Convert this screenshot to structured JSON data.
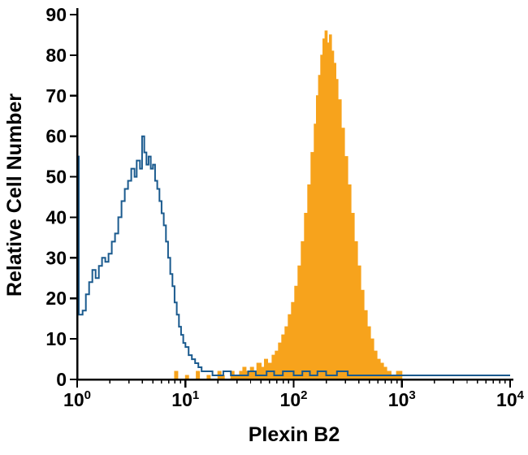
{
  "figure": {
    "background": "#ffffff"
  },
  "chart_data": {
    "type": "area",
    "subtype": "flow-cytometry-histogram-overlay",
    "title": "",
    "xlabel": "Plexin B2",
    "ylabel": "Relative Cell Number",
    "x_scale": "log10",
    "x_range_log10": [
      0,
      4
    ],
    "x_tick_base": "10",
    "x_tick_exponents": [
      0,
      1,
      2,
      3,
      4
    ],
    "ylim": [
      0,
      90
    ],
    "y_ticks": [
      0,
      10,
      20,
      30,
      40,
      50,
      60,
      70,
      80,
      90
    ],
    "grid": false,
    "legend": "none",
    "axis_color": "#000000",
    "series": [
      {
        "id": "filled-orange-histogram",
        "style": "filled",
        "color": "#f7a31c",
        "points": [
          [
            0.85,
            0
          ],
          [
            0.9,
            2
          ],
          [
            0.93,
            0
          ],
          [
            1.0,
            1
          ],
          [
            1.03,
            0
          ],
          [
            1.1,
            2
          ],
          [
            1.13,
            0
          ],
          [
            1.2,
            1
          ],
          [
            1.23,
            0
          ],
          [
            1.3,
            2
          ],
          [
            1.33,
            1
          ],
          [
            1.36,
            0
          ],
          [
            1.42,
            2
          ],
          [
            1.45,
            1
          ],
          [
            1.5,
            2
          ],
          [
            1.53,
            3
          ],
          [
            1.56,
            2
          ],
          [
            1.6,
            3
          ],
          [
            1.63,
            2
          ],
          [
            1.66,
            4
          ],
          [
            1.7,
            3
          ],
          [
            1.73,
            5
          ],
          [
            1.76,
            4
          ],
          [
            1.8,
            6
          ],
          [
            1.83,
            7
          ],
          [
            1.86,
            9
          ],
          [
            1.89,
            11
          ],
          [
            1.92,
            13
          ],
          [
            1.95,
            16
          ],
          [
            1.98,
            19
          ],
          [
            2.01,
            23
          ],
          [
            2.04,
            28
          ],
          [
            2.07,
            34
          ],
          [
            2.1,
            41
          ],
          [
            2.13,
            48
          ],
          [
            2.16,
            56
          ],
          [
            2.19,
            63
          ],
          [
            2.21,
            70
          ],
          [
            2.23,
            75
          ],
          [
            2.25,
            80
          ],
          [
            2.27,
            84
          ],
          [
            2.29,
            86
          ],
          [
            2.31,
            83
          ],
          [
            2.33,
            85
          ],
          [
            2.35,
            81
          ],
          [
            2.37,
            78
          ],
          [
            2.39,
            74
          ],
          [
            2.41,
            69
          ],
          [
            2.44,
            62
          ],
          [
            2.47,
            55
          ],
          [
            2.5,
            48
          ],
          [
            2.53,
            41
          ],
          [
            2.56,
            34
          ],
          [
            2.59,
            28
          ],
          [
            2.62,
            22
          ],
          [
            2.65,
            17
          ],
          [
            2.68,
            13
          ],
          [
            2.71,
            10
          ],
          [
            2.74,
            7
          ],
          [
            2.77,
            5
          ],
          [
            2.8,
            4
          ],
          [
            2.83,
            3
          ],
          [
            2.86,
            2
          ],
          [
            2.9,
            1
          ],
          [
            2.95,
            2
          ],
          [
            3.0,
            0
          ]
        ]
      },
      {
        "id": "open-blue-histogram",
        "style": "open",
        "color": "#1a5a8e",
        "points": [
          [
            0.0,
            55
          ],
          [
            0.015,
            16
          ],
          [
            0.05,
            17
          ],
          [
            0.08,
            21
          ],
          [
            0.11,
            24
          ],
          [
            0.14,
            27
          ],
          [
            0.17,
            25
          ],
          [
            0.2,
            28
          ],
          [
            0.23,
            30
          ],
          [
            0.26,
            29
          ],
          [
            0.29,
            31
          ],
          [
            0.32,
            34
          ],
          [
            0.35,
            36
          ],
          [
            0.38,
            40
          ],
          [
            0.41,
            44
          ],
          [
            0.44,
            47
          ],
          [
            0.47,
            49
          ],
          [
            0.5,
            52
          ],
          [
            0.53,
            50
          ],
          [
            0.55,
            54
          ],
          [
            0.58,
            52
          ],
          [
            0.6,
            60
          ],
          [
            0.62,
            56
          ],
          [
            0.64,
            53
          ],
          [
            0.66,
            55
          ],
          [
            0.68,
            52
          ],
          [
            0.7,
            53
          ],
          [
            0.72,
            49
          ],
          [
            0.74,
            47
          ],
          [
            0.76,
            44
          ],
          [
            0.78,
            41
          ],
          [
            0.8,
            38
          ],
          [
            0.82,
            34
          ],
          [
            0.84,
            30
          ],
          [
            0.86,
            26
          ],
          [
            0.88,
            23
          ],
          [
            0.9,
            19
          ],
          [
            0.92,
            16
          ],
          [
            0.94,
            13
          ],
          [
            0.96,
            11
          ],
          [
            0.98,
            9
          ],
          [
            1.0,
            8
          ],
          [
            1.03,
            6
          ],
          [
            1.06,
            5
          ],
          [
            1.09,
            4
          ],
          [
            1.12,
            3
          ],
          [
            1.15,
            2
          ],
          [
            1.2,
            2
          ],
          [
            1.25,
            1
          ],
          [
            1.35,
            2
          ],
          [
            1.42,
            1
          ],
          [
            1.5,
            1
          ],
          [
            1.58,
            2
          ],
          [
            1.65,
            1
          ],
          [
            1.75,
            2
          ],
          [
            1.82,
            1
          ],
          [
            1.9,
            2
          ],
          [
            2.0,
            1
          ],
          [
            2.08,
            2
          ],
          [
            2.15,
            1
          ],
          [
            2.22,
            2
          ],
          [
            2.3,
            1
          ],
          [
            2.4,
            2
          ],
          [
            2.5,
            1
          ],
          [
            2.6,
            1
          ],
          [
            2.75,
            1
          ],
          [
            3.0,
            1
          ],
          [
            3.5,
            1
          ],
          [
            4.0,
            1
          ]
        ]
      }
    ]
  }
}
